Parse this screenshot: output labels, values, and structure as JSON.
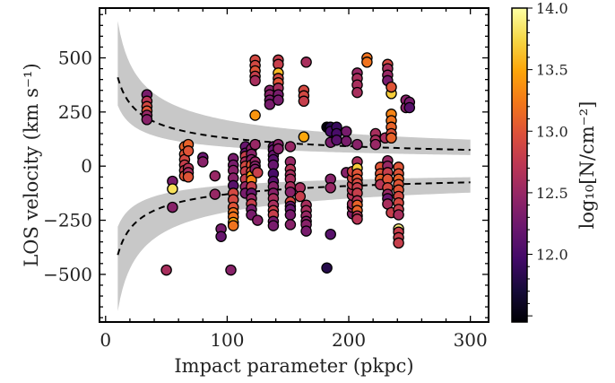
{
  "chart_data": {
    "type": "scatter",
    "xlabel": "Impact parameter (pkpc)",
    "ylabel": "LOS velocity (km s⁻¹)",
    "colorbar_label": "log₁₀[N/cm⁻²]",
    "xlim": [
      -5,
      315
    ],
    "ylim": [
      -720,
      730
    ],
    "xticks": [
      0,
      100,
      200,
      300
    ],
    "xtick_labels": [
      "0",
      "100",
      "200",
      "300"
    ],
    "yticks": [
      -500,
      -250,
      0,
      250,
      500
    ],
    "ytick_labels": [
      "−500",
      "−250",
      "0",
      "250",
      "500"
    ],
    "colorbar_range": [
      11.45,
      14.0
    ],
    "colorbar_ticks": [
      12.0,
      12.5,
      13.0,
      13.5,
      14.0
    ],
    "colorbar_tick_labels": [
      "12.0",
      "12.5",
      "13.0",
      "13.5",
      "14.0"
    ],
    "colormap": "inferno",
    "grid": false,
    "band": {
      "x_range": [
        10,
        300
      ],
      "center_at_x10": 410,
      "upper_at_x10": 670,
      "lower_at_x10": 280,
      "power_law_index": -0.5,
      "color": "#c8c8c8"
    },
    "points": [
      [
        34,
        330,
        12.3
      ],
      [
        34,
        300,
        12.7
      ],
      [
        34,
        275,
        12.9
      ],
      [
        34,
        255,
        13.0
      ],
      [
        34,
        235,
        12.5
      ],
      [
        34,
        215,
        12.4
      ],
      [
        55,
        -70,
        12.3
      ],
      [
        55,
        -105,
        13.8
      ],
      [
        55,
        -190,
        12.4
      ],
      [
        65,
        90,
        13.1
      ],
      [
        65,
        55,
        13.0
      ],
      [
        65,
        30,
        12.9
      ],
      [
        65,
        5,
        12.8
      ],
      [
        65,
        -20,
        12.8
      ],
      [
        65,
        -45,
        13.0
      ],
      [
        68,
        100,
        13.1
      ],
      [
        68,
        70,
        13.0
      ],
      [
        68,
        -10,
        12.7
      ],
      [
        68,
        -30,
        12.6
      ],
      [
        68,
        -50,
        13.0
      ],
      [
        50,
        -480,
        12.6
      ],
      [
        80,
        40,
        12.2
      ],
      [
        80,
        20,
        12.4
      ],
      [
        90,
        -130,
        12.5
      ],
      [
        90,
        -45,
        12.5
      ],
      [
        95,
        -290,
        12.3
      ],
      [
        95,
        -325,
        12.2
      ],
      [
        103,
        -480,
        12.4
      ],
      [
        105,
        35,
        12.3
      ],
      [
        105,
        5,
        12.3
      ],
      [
        105,
        -20,
        12.4
      ],
      [
        105,
        -55,
        12.4
      ],
      [
        105,
        -90,
        12.1
      ],
      [
        105,
        -125,
        12.9
      ],
      [
        105,
        -155,
        12.9
      ],
      [
        105,
        -190,
        13.0
      ],
      [
        105,
        -215,
        13.2
      ],
      [
        105,
        -235,
        13.2
      ],
      [
        105,
        -260,
        13.5
      ],
      [
        105,
        -275,
        13.2
      ],
      [
        115,
        90,
        12.2
      ],
      [
        115,
        60,
        12.2
      ],
      [
        115,
        45,
        12.8
      ],
      [
        115,
        20,
        12.6
      ],
      [
        115,
        0,
        12.9
      ],
      [
        115,
        -25,
        12.8
      ],
      [
        115,
        -60,
        12.8
      ],
      [
        115,
        -95,
        12.5
      ],
      [
        115,
        -125,
        12.3
      ],
      [
        120,
        80,
        12.4
      ],
      [
        120,
        55,
        12.4
      ],
      [
        120,
        30,
        12.4
      ],
      [
        120,
        5,
        13.0
      ],
      [
        120,
        -25,
        13.0
      ],
      [
        120,
        -45,
        13.5
      ],
      [
        120,
        -65,
        13.3
      ],
      [
        120,
        -95,
        12.8
      ],
      [
        120,
        -125,
        12.2
      ],
      [
        120,
        -150,
        12.5
      ],
      [
        120,
        -175,
        12.8
      ],
      [
        120,
        -200,
        12.3
      ],
      [
        120,
        -225,
        12.3
      ],
      [
        123,
        490,
        12.9
      ],
      [
        123,
        465,
        12.9
      ],
      [
        123,
        440,
        13.0
      ],
      [
        123,
        415,
        12.8
      ],
      [
        123,
        395,
        12.6
      ],
      [
        123,
        235,
        13.4
      ],
      [
        123,
        100,
        12.5
      ],
      [
        123,
        20,
        12.5
      ],
      [
        123,
        0,
        12.4
      ],
      [
        123,
        -15,
        12.4
      ],
      [
        125,
        -30,
        12.8
      ],
      [
        125,
        -250,
        12.4
      ],
      [
        135,
        350,
        12.4
      ],
      [
        135,
        330,
        12.4
      ],
      [
        135,
        305,
        12.3
      ],
      [
        135,
        285,
        12.3
      ],
      [
        138,
        90,
        12.2
      ],
      [
        138,
        75,
        12.2
      ],
      [
        138,
        50,
        12.2
      ],
      [
        138,
        30,
        12.1
      ],
      [
        138,
        5,
        12.2
      ],
      [
        138,
        -35,
        12.0
      ],
      [
        138,
        -70,
        12.1
      ],
      [
        138,
        -95,
        12.4
      ],
      [
        138,
        -125,
        12.4
      ],
      [
        138,
        -150,
        12.6
      ],
      [
        138,
        -180,
        12.6
      ],
      [
        138,
        -205,
        12.8
      ],
      [
        138,
        -225,
        12.8
      ],
      [
        138,
        -255,
        12.3
      ],
      [
        138,
        -275,
        12.3
      ],
      [
        142,
        490,
        12.8
      ],
      [
        142,
        470,
        12.8
      ],
      [
        142,
        430,
        13.6
      ],
      [
        142,
        405,
        12.9
      ],
      [
        142,
        385,
        13.0
      ],
      [
        142,
        360,
        12.6
      ],
      [
        142,
        330,
        12.3
      ],
      [
        142,
        305,
        12.3
      ],
      [
        142,
        100,
        12.4
      ],
      [
        142,
        80,
        12.4
      ],
      [
        152,
        90,
        12.5
      ],
      [
        152,
        20,
        12.5
      ],
      [
        152,
        -15,
        12.7
      ],
      [
        152,
        -40,
        12.6
      ],
      [
        152,
        -60,
        12.6
      ],
      [
        152,
        -95,
        12.6
      ],
      [
        152,
        -120,
        12.4
      ],
      [
        152,
        -165,
        12.9
      ],
      [
        152,
        -185,
        12.2
      ],
      [
        152,
        -200,
        12.2
      ],
      [
        152,
        -225,
        12.3
      ],
      [
        152,
        -270,
        12.4
      ],
      [
        160,
        -100,
        12.6
      ],
      [
        160,
        -140,
        12.8
      ],
      [
        163,
        135,
        13.5
      ],
      [
        163,
        350,
        12.9
      ],
      [
        163,
        325,
        12.9
      ],
      [
        163,
        300,
        12.8
      ],
      [
        165,
        480,
        12.6
      ],
      [
        165,
        -180,
        12.6
      ],
      [
        165,
        -205,
        12.6
      ],
      [
        165,
        -230,
        12.5
      ],
      [
        165,
        -255,
        12.4
      ],
      [
        165,
        -270,
        12.4
      ],
      [
        165,
        -300,
        12.3
      ],
      [
        182,
        180,
        11.5
      ],
      [
        182,
        -470,
        11.8
      ],
      [
        185,
        -315,
        12.1
      ],
      [
        185,
        180,
        11.8
      ],
      [
        185,
        160,
        12.0
      ],
      [
        185,
        110,
        12.3
      ],
      [
        185,
        -60,
        12.4
      ],
      [
        185,
        -100,
        12.5
      ],
      [
        190,
        180,
        11.9
      ],
      [
        190,
        150,
        12.0
      ],
      [
        190,
        120,
        12.1
      ],
      [
        198,
        160,
        12.3
      ],
      [
        198,
        115,
        12.3
      ],
      [
        198,
        -30,
        12.4
      ],
      [
        203,
        -220,
        12.4
      ],
      [
        203,
        -190,
        12.6
      ],
      [
        203,
        -175,
        12.6
      ],
      [
        203,
        -135,
        12.7
      ],
      [
        203,
        -110,
        12.7
      ],
      [
        203,
        -85,
        12.8
      ],
      [
        203,
        -55,
        12.9
      ],
      [
        203,
        -25,
        12.9
      ],
      [
        207,
        430,
        12.5
      ],
      [
        207,
        405,
        12.6
      ],
      [
        207,
        375,
        12.6
      ],
      [
        207,
        340,
        12.6
      ],
      [
        207,
        100,
        12.4
      ],
      [
        207,
        20,
        12.6
      ],
      [
        207,
        -10,
        13.7
      ],
      [
        207,
        -35,
        13.0
      ],
      [
        207,
        -60,
        13.0
      ],
      [
        207,
        -80,
        12.9
      ],
      [
        207,
        -100,
        12.8
      ],
      [
        207,
        -125,
        12.8
      ],
      [
        207,
        -160,
        12.7
      ],
      [
        207,
        -180,
        13.1
      ],
      [
        207,
        -205,
        13.1
      ],
      [
        207,
        -230,
        12.7
      ],
      [
        207,
        -245,
        12.7
      ],
      [
        215,
        500,
        13.2
      ],
      [
        215,
        480,
        13.2
      ],
      [
        222,
        150,
        12.6
      ],
      [
        222,
        120,
        12.6
      ],
      [
        222,
        100,
        12.5
      ],
      [
        226,
        -5,
        13.0
      ],
      [
        226,
        -35,
        13.0
      ],
      [
        226,
        -60,
        13.1
      ],
      [
        226,
        -85,
        12.7
      ],
      [
        230,
        130,
        12.6
      ],
      [
        232,
        470,
        12.9
      ],
      [
        232,
        450,
        12.6
      ],
      [
        232,
        420,
        12.5
      ],
      [
        232,
        395,
        12.3
      ],
      [
        232,
        25,
        12.5
      ],
      [
        232,
        0,
        12.5
      ],
      [
        232,
        -30,
        12.8
      ],
      [
        232,
        -60,
        13.0
      ],
      [
        232,
        -100,
        12.9
      ],
      [
        232,
        -130,
        12.5
      ],
      [
        232,
        -150,
        12.2
      ],
      [
        232,
        -175,
        12.6
      ],
      [
        235,
        335,
        13.7
      ],
      [
        235,
        365,
        13.0
      ],
      [
        235,
        240,
        13.3
      ],
      [
        235,
        210,
        13.2
      ],
      [
        235,
        180,
        13.1
      ],
      [
        235,
        150,
        13.0
      ],
      [
        235,
        130,
        13.1
      ],
      [
        235,
        -215,
        12.8
      ],
      [
        241,
        -5,
        13.0
      ],
      [
        241,
        -35,
        13.0
      ],
      [
        241,
        -60,
        13.1
      ],
      [
        241,
        -85,
        13.0
      ],
      [
        241,
        -110,
        13.0
      ],
      [
        241,
        -140,
        12.9
      ],
      [
        241,
        -170,
        12.9
      ],
      [
        241,
        -200,
        12.8
      ],
      [
        241,
        -225,
        12.6
      ],
      [
        241,
        -290,
        13.9
      ],
      [
        241,
        -305,
        12.8
      ],
      [
        241,
        -330,
        12.8
      ],
      [
        241,
        -355,
        12.8
      ],
      [
        247,
        305,
        12.4
      ],
      [
        247,
        270,
        12.4
      ],
      [
        250,
        295,
        12.3
      ],
      [
        250,
        270,
        12.1
      ]
    ]
  }
}
